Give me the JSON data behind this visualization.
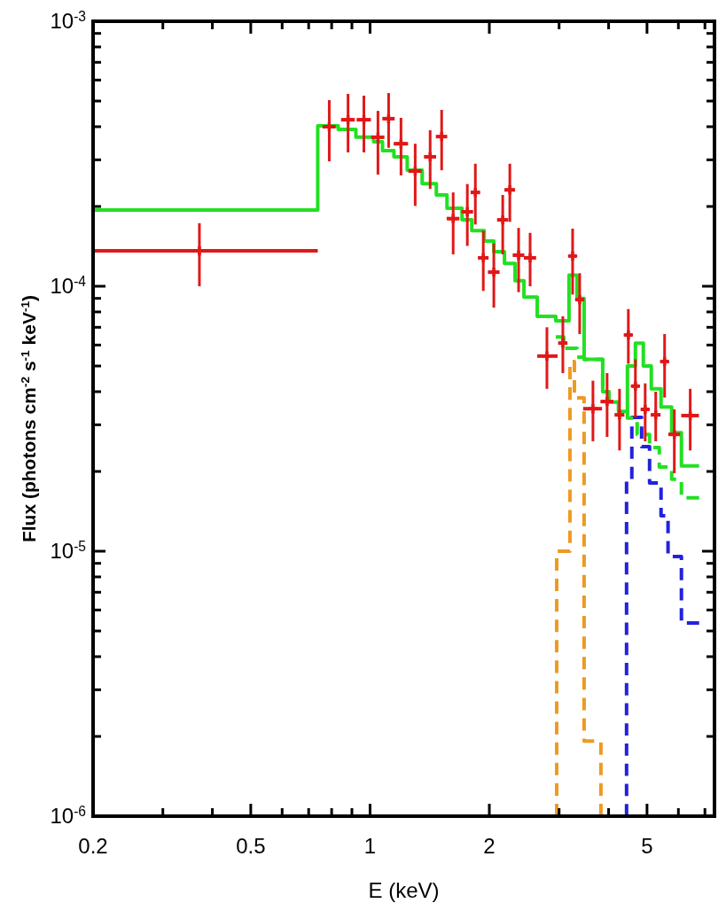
{
  "chart_data": {
    "type": "step",
    "xlabel": "E (keV)",
    "ylabel": "Flux (photons cm$^{-2}$ s$^{-1}$ keV$^{-1}$)",
    "log": "xy",
    "grid": false,
    "xlim": [
      0.2,
      7.4
    ],
    "ylim": [
      1e-06,
      0.001
    ],
    "xticks": [
      0.2,
      {
        "value": 0.3,
        "label": null
      },
      {
        "value": 0.4,
        "label": null
      },
      0.5,
      {
        "value": 0.6,
        "label": null
      },
      {
        "value": 0.7,
        "label": null
      },
      {
        "value": 0.8,
        "label": null
      },
      {
        "value": 0.9,
        "label": null
      },
      1,
      2,
      {
        "value": 3,
        "label": null
      },
      {
        "value": 4,
        "label": null
      },
      5,
      {
        "value": 6,
        "label": null
      },
      {
        "value": 7,
        "label": null
      }
    ],
    "yticks": [
      {
        "value": 1e-06,
        "label": "10$^{-6}$"
      },
      {
        "value": 2e-06,
        "label": null
      },
      {
        "value": 3e-06,
        "label": null
      },
      {
        "value": 4e-06,
        "label": null
      },
      {
        "value": 5e-06,
        "label": null
      },
      {
        "value": 6e-06,
        "label": null
      },
      {
        "value": 7e-06,
        "label": null
      },
      {
        "value": 8e-06,
        "label": null
      },
      {
        "value": 9e-06,
        "label": null
      },
      {
        "value": 1e-05,
        "label": "10$^{-5}$"
      },
      {
        "value": 2e-05,
        "label": null
      },
      {
        "value": 3e-05,
        "label": null
      },
      {
        "value": 4e-05,
        "label": null
      },
      {
        "value": 5e-05,
        "label": null
      },
      {
        "value": 6e-05,
        "label": null
      },
      {
        "value": 7e-05,
        "label": null
      },
      {
        "value": 8e-05,
        "label": null
      },
      {
        "value": 9e-05,
        "label": null
      },
      {
        "value": 0.0001,
        "label": "10$^{-4}$"
      },
      {
        "value": 0.0002,
        "label": null
      },
      {
        "value": 0.0003,
        "label": null
      },
      {
        "value": 0.0004,
        "label": null
      },
      {
        "value": 0.0005,
        "label": null
      },
      {
        "value": 0.0006,
        "label": null
      },
      {
        "value": 0.0007,
        "label": null
      },
      {
        "value": 0.0008,
        "label": null
      },
      {
        "value": 0.0009,
        "label": null
      },
      {
        "value": 0.001,
        "label": "10$^{-3}$"
      }
    ],
    "series": [
      {
        "type": "step",
        "color": "#ee9a22",
        "line_style": "dashed",
        "x": [
          2.958,
          2.958,
          3.195,
          3.279,
          3.469,
          3.825
        ],
        "values": [
          1e-06,
          1e-05,
          5.2e-05,
          3.79e-05,
          1.92e-06,
          1e-06
        ]
      },
      {
        "type": "step",
        "color": "#2222dd",
        "line_style": "dashed",
        "x": [
          4.44,
          4.44,
          4.578,
          4.845,
          5.075,
          5.425,
          5.65,
          6.107,
          6.768
        ],
        "values": [
          1e-06,
          1.84e-05,
          3.2e-05,
          2.48e-05,
          1.81e-05,
          1.36e-05,
          9.55e-06,
          5.36e-06,
          5.36e-06
        ]
      },
      {
        "type": "step",
        "color": "#22e022",
        "line_style": "dashed",
        "x": [
          2.943,
          3.083,
          3.329,
          3.469,
          3.865,
          4.006,
          4.239,
          4.463,
          4.722,
          5.075,
          5.37,
          5.77,
          6.107,
          6.768
        ],
        "values": [
          6.44e-05,
          5.83e-05,
          5.4e-05,
          5.3e-05,
          4e-05,
          3.65e-05,
          3.37e-05,
          3.18e-05,
          2.76e-05,
          2.46e-05,
          2.08e-05,
          1.87e-05,
          1.59e-05,
          1.59e-05
        ]
      },
      {
        "type": "step",
        "color": "#22e022",
        "line_style": "solid",
        "x": [
          0.2,
          0.738,
          0.831,
          0.921,
          1.021,
          1.075,
          1.149,
          1.241,
          1.354,
          1.47,
          1.564,
          1.707,
          1.806,
          1.941,
          2.053,
          2.184,
          2.323,
          2.446,
          2.642,
          2.943,
          3.178,
          3.329,
          3.469,
          3.865,
          4.006,
          4.239,
          4.463,
          4.674,
          4.894,
          5.126,
          5.425,
          5.77,
          6.107,
          6.768
        ],
        "values": [
          0.000194,
          0.000403,
          0.000391,
          0.000365,
          0.000351,
          0.000325,
          0.000308,
          0.000274,
          0.000244,
          0.000221,
          0.000197,
          0.000178,
          0.000162,
          0.000148,
          0.000135,
          0.000122,
          0.000105,
          9.1e-05,
          7.7e-05,
          7.4e-05,
          0.00011,
          9e-05,
          5.3e-05,
          4e-05,
          3.65e-05,
          3.37e-05,
          5e-05,
          6.1e-05,
          5e-05,
          4.1e-05,
          3.5e-05,
          2.8e-05,
          2.1e-05,
          2.1e-05
        ]
      },
      {
        "type": "scatter",
        "color": "#e01818",
        "marker": "cross",
        "x": [
          0.371,
          0.789,
          0.88,
          0.965,
          1.047,
          1.114,
          1.197,
          1.3,
          1.418,
          1.516,
          1.621,
          1.76,
          1.844,
          1.931,
          2.053,
          2.162,
          2.253,
          2.371,
          2.535,
          2.795,
          3.066,
          3.245,
          3.381,
          3.652,
          3.965,
          4.262,
          4.486,
          4.674,
          4.947,
          5.26,
          5.538,
          5.86,
          6.427
        ],
        "values": [
          0.000136,
          0.0004,
          0.000425,
          0.000425,
          0.000365,
          0.000429,
          0.000345,
          0.000272,
          0.000308,
          0.000367,
          0.00018,
          0.000191,
          0.000226,
          0.000128,
          0.000113,
          0.000178,
          0.000231,
          0.000131,
          0.000128,
          5.45e-05,
          6.1e-05,
          0.00013,
          8.9e-05,
          3.45e-05,
          3.67e-05,
          3.27e-05,
          6.55e-05,
          4.2e-05,
          3.43e-05,
          3.27e-05,
          5.2e-05,
          2.76e-05,
          3.25e-05
        ],
        "errors": [
          [
            0.0001,
            0.000173
          ],
          [
            0.000296,
            0.000504
          ],
          [
            0.00032,
            0.000532
          ],
          [
            0.00032,
            0.000524
          ],
          [
            0.000264,
            0.000459
          ],
          [
            0.000333,
            0.000536
          ],
          [
            0.000262,
            0.000432
          ],
          [
            0.000201,
            0.000345
          ],
          [
            0.000233,
            0.000388
          ],
          [
            0.000274,
            0.000463
          ],
          [
            0.000132,
            0.000226
          ],
          [
            0.000142,
            0.000243
          ],
          [
            0.000171,
            0.00029
          ],
          [
            9.6e-05,
            0.000162
          ],
          [
            8.3e-05,
            0.000145
          ],
          [
            0.000132,
            0.000221
          ],
          [
            0.000175,
            0.00029
          ],
          [
            9.5e-05,
            0.000166
          ],
          [
            0.0001,
            0.000159
          ],
          [
            4.1e-05,
            7e-05
          ],
          [
            4.7e-05,
            7.7e-05
          ],
          [
            9.3e-05,
            0.000165
          ],
          [
            6.6e-05,
            0.000112
          ],
          [
            2.6e-05,
            4.4e-05
          ],
          [
            2.7e-05,
            4.7e-05
          ],
          [
            2.4e-05,
            4.1e-05
          ],
          [
            5.1e-05,
            8.2e-05
          ],
          [
            3.2e-05,
            5.3e-05
          ],
          [
            2.6e-05,
            4.3e-05
          ],
          [
            2.6e-05,
            4e-05
          ],
          [
            3.8e-05,
            6.6e-05
          ],
          [
            1.97e-05,
            3.43e-05
          ],
          [
            2.4e-05,
            4.1e-05
          ]
        ],
        "xerrors": [
          [
            0.2,
            0.738
          ],
          0.03,
          0.035,
          0.04,
          0.04,
          0.04,
          0.05,
          0.05,
          0.05,
          0.05,
          0.06,
          0.06,
          0.05,
          0.06,
          0.07,
          0.07,
          0.07,
          0.08,
          0.09,
          [
            2.642,
            2.974
          ],
          0.08,
          0.07,
          0.08,
          [
            3.45,
            3.85
          ],
          0.15,
          0.12,
          0.1,
          0.1,
          0.12,
          0.15,
          0.12,
          0.2,
          [
            6.1,
            6.76
          ]
        ]
      }
    ]
  }
}
